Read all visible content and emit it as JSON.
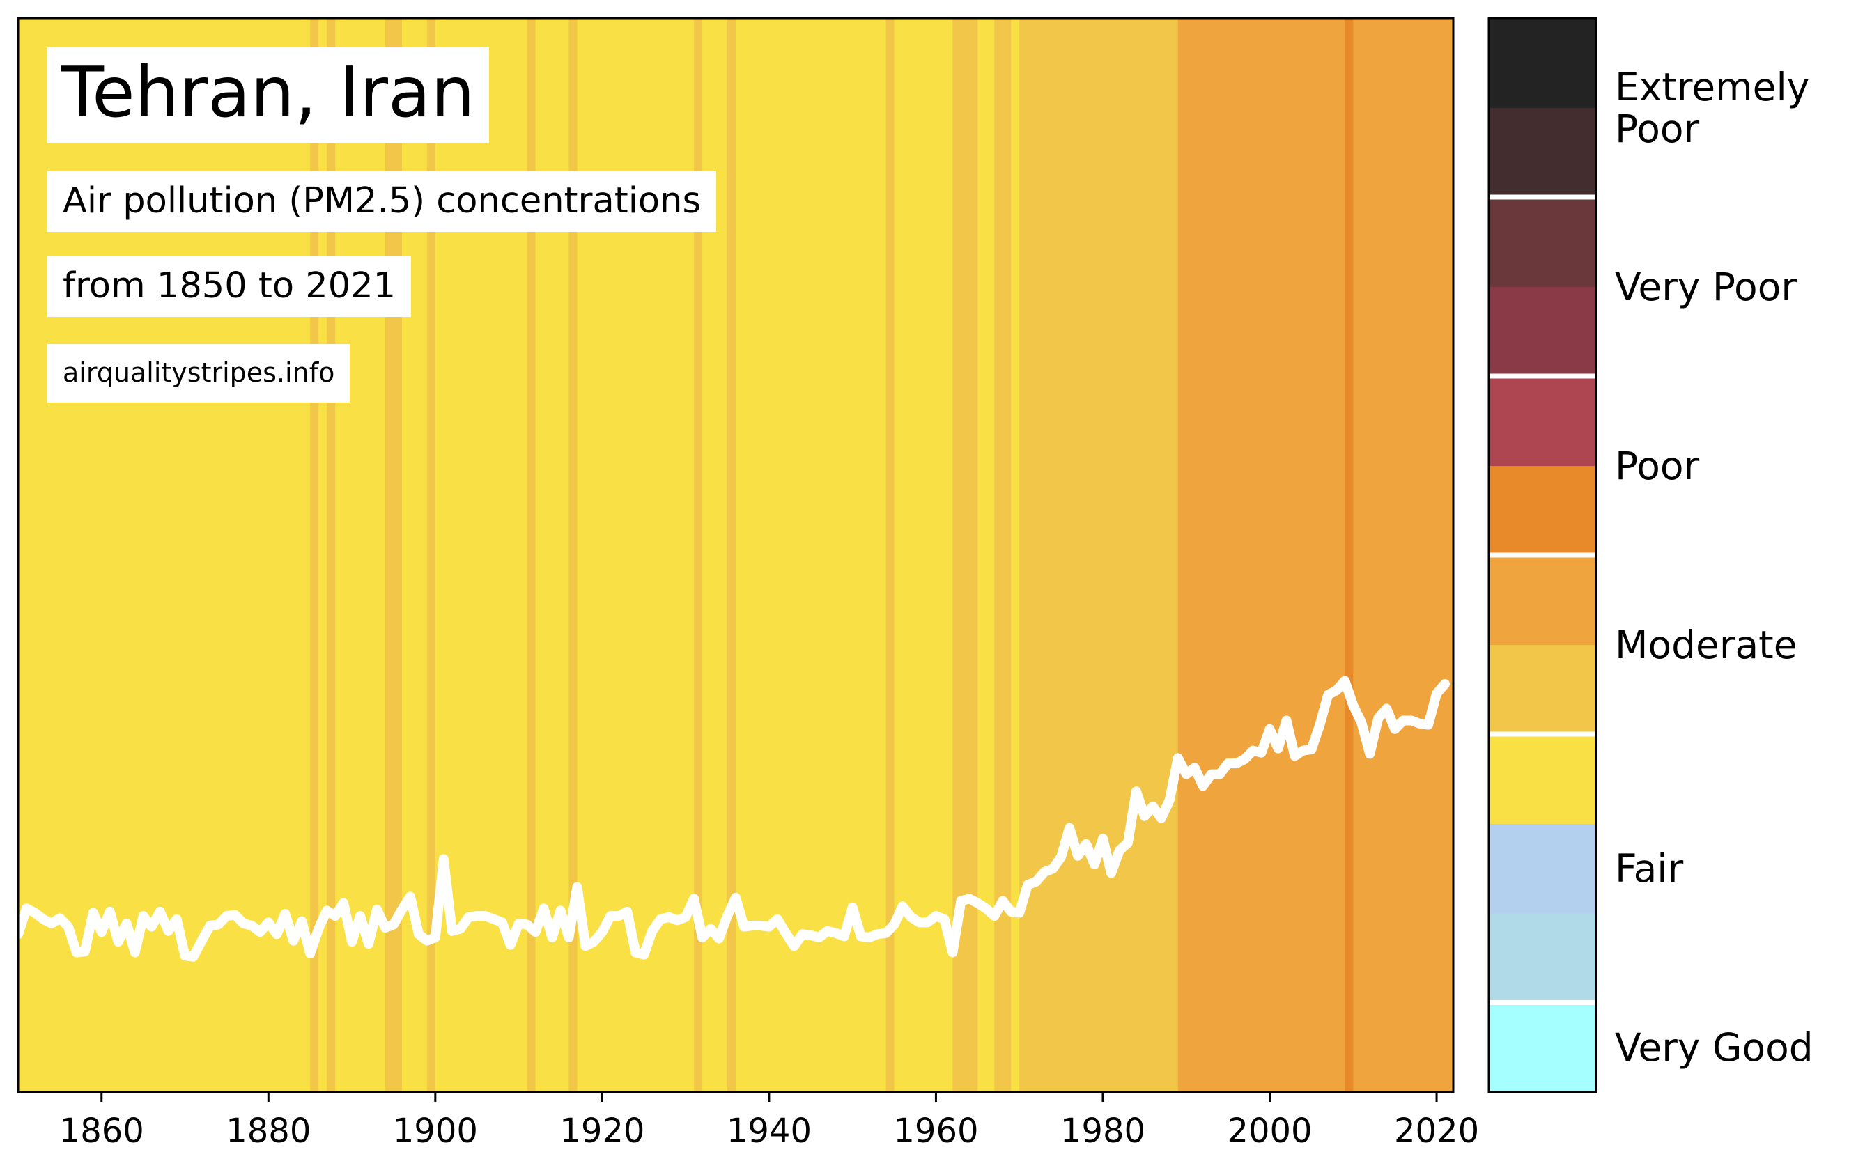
{
  "header": {
    "title": "Tehran, Iran",
    "subtitle": "Air pollution (PM2.5) concentrations",
    "range": "from 1850 to 2021",
    "source": "airqualitystripes.info"
  },
  "colorbar": {
    "segments": [
      "#a6ffff",
      "#b0dae8",
      "#b3d1ee",
      "#f8e045",
      "#f2c648",
      "#f0a43e",
      "#e8892a",
      "#ae4651",
      "#8a3a46",
      "#6a373a",
      "#442d2f",
      "#232323"
    ],
    "separators_after_segment": [
      1,
      4,
      6,
      8,
      10
    ],
    "labels": [
      {
        "text": "Very Good",
        "segment": 0.5
      },
      {
        "text": "Fair",
        "segment": 2.5
      },
      {
        "text": "Moderate",
        "segment": 5.0
      },
      {
        "text": "Poor",
        "segment": 7.0
      },
      {
        "text": "Very Poor",
        "segment": 9.0
      },
      {
        "text": "Extremely Poor",
        "segment": 11.0
      }
    ]
  },
  "chart_data": {
    "type": "line",
    "title": "Tehran, Iran",
    "subtitle": "Air pollution (PM2.5) concentrations",
    "xlabel": "",
    "ylabel": "",
    "xlim": [
      1850,
      2022
    ],
    "ylim": [
      0,
      100
    ],
    "x_ticks": [
      1860,
      1880,
      1900,
      1920,
      1940,
      1960,
      1980,
      2000,
      2020
    ],
    "stripe_colors": {
      "moderate_low": "#f8e045",
      "moderate_high": "#f2c648",
      "poor_low": "#f0a43e",
      "poor_high": "#e8892a"
    },
    "stripes": [
      {
        "from": 1850,
        "to": 1885,
        "color": "moderate_low"
      },
      {
        "from": 1885,
        "to": 1886,
        "color": "moderate_high"
      },
      {
        "from": 1886,
        "to": 1887,
        "color": "moderate_low"
      },
      {
        "from": 1887,
        "to": 1888,
        "color": "moderate_high"
      },
      {
        "from": 1888,
        "to": 1894,
        "color": "moderate_low"
      },
      {
        "from": 1894,
        "to": 1896,
        "color": "moderate_high"
      },
      {
        "from": 1896,
        "to": 1899,
        "color": "moderate_low"
      },
      {
        "from": 1899,
        "to": 1900,
        "color": "moderate_high"
      },
      {
        "from": 1900,
        "to": 1911,
        "color": "moderate_low"
      },
      {
        "from": 1911,
        "to": 1912,
        "color": "moderate_high"
      },
      {
        "from": 1912,
        "to": 1916,
        "color": "moderate_low"
      },
      {
        "from": 1916,
        "to": 1917,
        "color": "moderate_high"
      },
      {
        "from": 1917,
        "to": 1931,
        "color": "moderate_low"
      },
      {
        "from": 1931,
        "to": 1932,
        "color": "moderate_high"
      },
      {
        "from": 1932,
        "to": 1935,
        "color": "moderate_low"
      },
      {
        "from": 1935,
        "to": 1936,
        "color": "moderate_high"
      },
      {
        "from": 1936,
        "to": 1954,
        "color": "moderate_low"
      },
      {
        "from": 1954,
        "to": 1955,
        "color": "moderate_high"
      },
      {
        "from": 1955,
        "to": 1962,
        "color": "moderate_low"
      },
      {
        "from": 1962,
        "to": 1965,
        "color": "moderate_high"
      },
      {
        "from": 1965,
        "to": 1967,
        "color": "moderate_low"
      },
      {
        "from": 1967,
        "to": 1969,
        "color": "moderate_high"
      },
      {
        "from": 1969,
        "to": 1970,
        "color": "moderate_low"
      },
      {
        "from": 1970,
        "to": 1989,
        "color": "moderate_high"
      },
      {
        "from": 1989,
        "to": 2009,
        "color": "poor_low"
      },
      {
        "from": 2009,
        "to": 2010,
        "color": "poor_high"
      },
      {
        "from": 2010,
        "to": 2022,
        "color": "poor_low"
      }
    ],
    "line": {
      "color": "#ffffff",
      "x": [
        1850,
        1851,
        1852,
        1853,
        1854,
        1855,
        1856,
        1857,
        1858,
        1859,
        1860,
        1861,
        1862,
        1863,
        1864,
        1865,
        1866,
        1867,
        1868,
        1869,
        1870,
        1871,
        1872,
        1873,
        1874,
        1875,
        1876,
        1877,
        1878,
        1879,
        1880,
        1881,
        1882,
        1883,
        1884,
        1885,
        1886,
        1887,
        1888,
        1889,
        1890,
        1891,
        1892,
        1893,
        1894,
        1895,
        1896,
        1897,
        1898,
        1899,
        1900,
        1901,
        1902,
        1903,
        1904,
        1905,
        1906,
        1907,
        1908,
        1909,
        1910,
        1911,
        1912,
        1913,
        1914,
        1915,
        1916,
        1917,
        1918,
        1919,
        1920,
        1921,
        1922,
        1923,
        1924,
        1925,
        1926,
        1927,
        1928,
        1929,
        1930,
        1931,
        1932,
        1933,
        1934,
        1935,
        1936,
        1937,
        1938,
        1939,
        1940,
        1941,
        1942,
        1943,
        1944,
        1945,
        1946,
        1947,
        1948,
        1949,
        1950,
        1951,
        1952,
        1953,
        1954,
        1955,
        1956,
        1957,
        1958,
        1959,
        1960,
        1961,
        1962,
        1963,
        1964,
        1965,
        1966,
        1967,
        1968,
        1969,
        1970,
        1971,
        1972,
        1973,
        1974,
        1975,
        1976,
        1977,
        1978,
        1979,
        1980,
        1981,
        1982,
        1983,
        1984,
        1985,
        1986,
        1987,
        1988,
        1989,
        1990,
        1991,
        1992,
        1993,
        1994,
        1995,
        1996,
        1997,
        1998,
        1999,
        2000,
        2001,
        2002,
        2003,
        2004,
        2005,
        2006,
        2007,
        2008,
        2009,
        2010,
        2011,
        2012,
        2013,
        2014,
        2015,
        2016,
        2017,
        2018,
        2019,
        2020,
        2021
      ],
      "y": [
        14.7,
        17.1,
        16.7,
        16.1,
        15.7,
        16.2,
        15.4,
        13.0,
        13.1,
        16.7,
        14.9,
        16.8,
        14.0,
        15.7,
        13.0,
        16.4,
        15.4,
        16.8,
        15.0,
        16.1,
        12.7,
        12.6,
        14.1,
        15.5,
        15.6,
        16.4,
        16.5,
        15.7,
        15.5,
        14.9,
        15.8,
        14.7,
        16.6,
        14.1,
        15.9,
        12.9,
        15.2,
        16.9,
        16.4,
        17.6,
        14.0,
        16.4,
        13.8,
        17.0,
        15.3,
        15.6,
        17.0,
        18.2,
        14.7,
        14.1,
        14.4,
        21.7,
        15.0,
        15.2,
        16.3,
        16.4,
        16.4,
        16.1,
        15.8,
        13.7,
        15.7,
        15.6,
        14.9,
        17.1,
        14.4,
        16.9,
        14.4,
        19.1,
        13.6,
        14.0,
        14.9,
        16.4,
        16.4,
        16.8,
        13.0,
        12.8,
        15.0,
        16.1,
        16.3,
        16.0,
        16.3,
        18.0,
        14.4,
        15.2,
        14.3,
        16.4,
        18.1,
        15.4,
        15.5,
        15.5,
        15.4,
        16.1,
        14.8,
        13.6,
        14.7,
        14.6,
        14.4,
        15.0,
        14.8,
        14.5,
        17.2,
        14.5,
        14.4,
        14.7,
        14.8,
        15.6,
        17.3,
        16.3,
        15.8,
        15.8,
        16.4,
        16.1,
        13.0,
        17.8,
        18.0,
        17.6,
        17.1,
        16.4,
        17.8,
        16.8,
        16.7,
        19.3,
        19.6,
        20.5,
        20.8,
        21.9,
        24.6,
        22.0,
        23.1,
        21.2,
        23.6,
        20.4,
        22.5,
        23.2,
        28.0,
        25.7,
        26.6,
        25.5,
        27.2,
        31.1,
        29.6,
        30.2,
        28.5,
        29.6,
        29.6,
        30.6,
        30.6,
        31.0,
        31.8,
        31.6,
        33.8,
        32.0,
        34.6,
        31.3,
        31.8,
        31.9,
        34.2,
        37.0,
        37.4,
        38.3,
        36.0,
        34.4,
        31.5,
        34.8,
        35.7,
        33.8,
        34.6,
        34.6,
        34.3,
        34.2,
        37.1,
        38.0
      ]
    }
  }
}
